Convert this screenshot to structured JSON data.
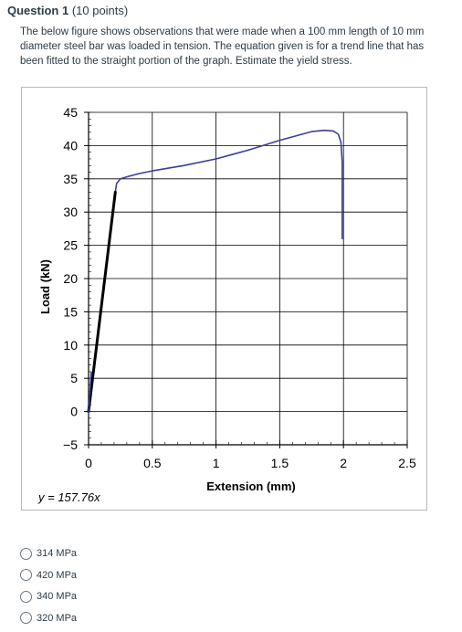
{
  "question": {
    "title": "Question 1",
    "points": "(10 points)",
    "text": "The below figure shows observations that were made when a 100 mm length of 10 mm diameter steel bar was loaded in tension. The equation given is for a trend line that has been fitted to the straight portion of the graph. Estimate the yield stress."
  },
  "chart_data": {
    "type": "line",
    "xlabel": "Extension (mm)",
    "ylabel": "Load (kN)",
    "xlim": [
      0,
      2.5
    ],
    "ylim": [
      -5,
      45
    ],
    "x_ticks": [
      0,
      0.5,
      1,
      1.5,
      2,
      2.5
    ],
    "y_ticks": [
      -5,
      0,
      5,
      10,
      15,
      20,
      25,
      30,
      35,
      40,
      45
    ],
    "x_tick_labels": [
      "0",
      "0.5",
      "1",
      "1.5",
      "2",
      "2.5"
    ],
    "y_tick_labels": [
      "−5",
      "0",
      "5",
      "10",
      "15",
      "20",
      "25",
      "30",
      "35",
      "40",
      "45"
    ],
    "grid": true,
    "annotation": "y = 157.76x",
    "series": [
      {
        "color": "#3b3f9a",
        "x": [
          0.21,
          0.22,
          0.25,
          0.3,
          0.4,
          0.5,
          0.75,
          1.0,
          1.25,
          1.5,
          1.75,
          1.85,
          1.92,
          1.96,
          1.98,
          1.99,
          1.99,
          1.99,
          1.99
        ],
        "y": [
          33.0,
          34.3,
          35.0,
          35.3,
          35.8,
          36.2,
          37.0,
          38.0,
          39.3,
          40.8,
          42.1,
          42.3,
          42.2,
          41.7,
          40.5,
          37.5,
          33.0,
          28.0,
          26.0
        ]
      },
      {
        "color": "#000000",
        "x": [
          0,
          0.21
        ],
        "y": [
          0,
          33.0
        ]
      }
    ]
  },
  "answers": [
    {
      "label": "314 MPa"
    },
    {
      "label": "420 MPa"
    },
    {
      "label": "340 MPa"
    },
    {
      "label": "320 MPa"
    }
  ]
}
